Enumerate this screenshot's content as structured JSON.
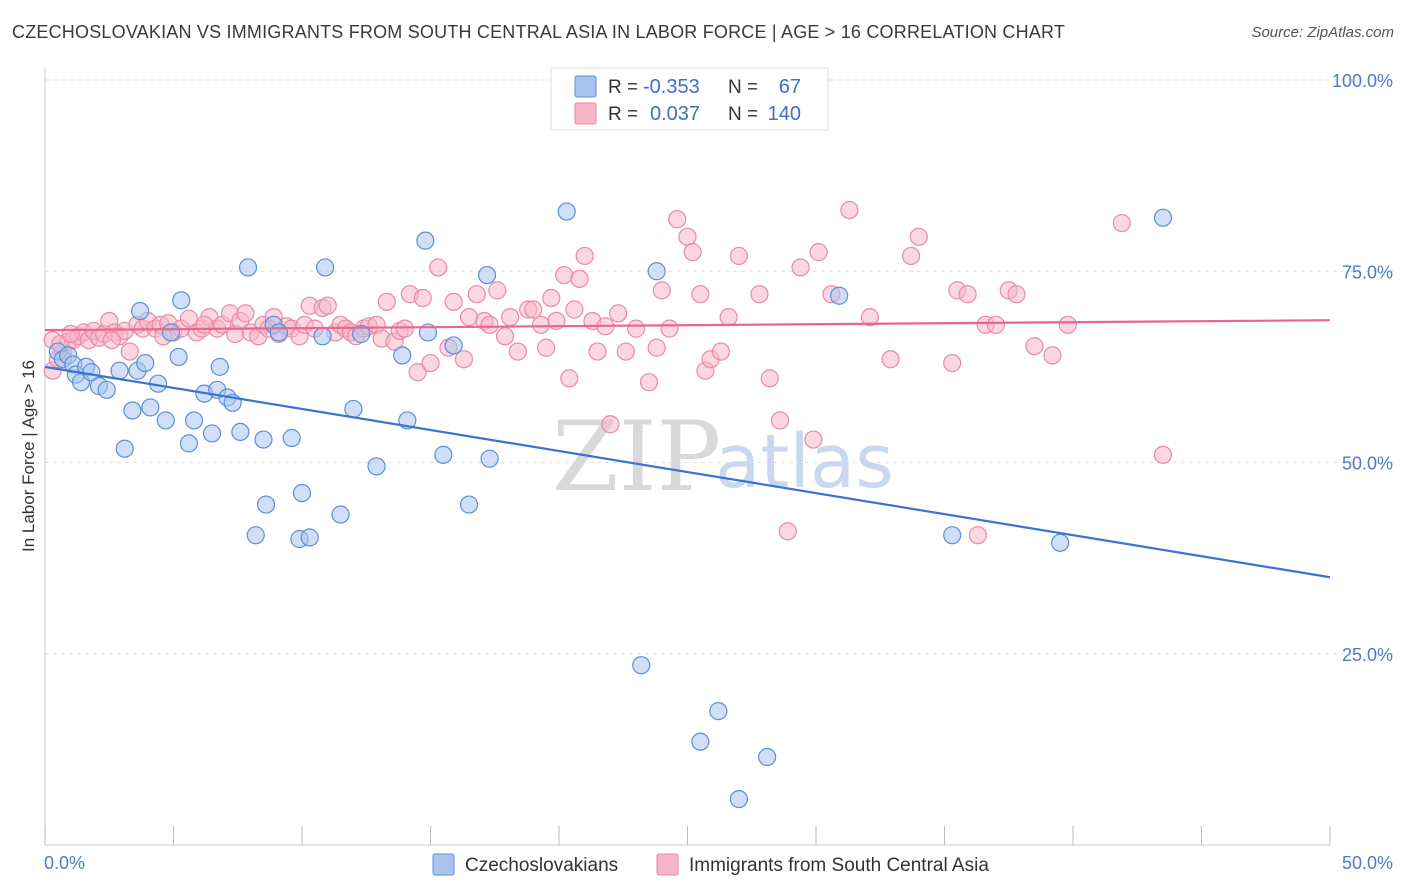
{
  "title": "CZECHOSLOVAKIAN VS IMMIGRANTS FROM SOUTH CENTRAL ASIA IN LABOR FORCE | AGE > 16 CORRELATION CHART",
  "source": "Source: ZipAtlas.com",
  "watermark": {
    "zip": "ZIP",
    "atlas": "atlas"
  },
  "colors": {
    "blue_fill": "#a9c4ee",
    "blue_stroke": "#5b8fd8",
    "blue_line": "#3a74d0",
    "pink_fill": "#f6b6c8",
    "pink_stroke": "#e88aa8",
    "pink_line": "#e8668f",
    "axis_text": "#4a7cc7",
    "grid": "#dddddd"
  },
  "legend_box": {
    "rows": [
      {
        "r_label": "R =",
        "r_value": "-0.353",
        "n_label": "N =",
        "n_value": "67",
        "series": "blue"
      },
      {
        "r_label": "R =",
        "r_value": "0.037",
        "n_label": "N =",
        "n_value": "140",
        "series": "pink"
      }
    ]
  },
  "chart_data": {
    "type": "scatter",
    "title": "CZECHOSLOVAKIAN VS IMMIGRANTS FROM SOUTH CENTRAL ASIA IN LABOR FORCE | AGE > 16 CORRELATION CHART",
    "xlabel": "",
    "ylabel": "In Labor Force | Age > 16",
    "xlim": [
      0,
      50
    ],
    "ylim": [
      0,
      100
    ],
    "x_ticks": [
      "0.0%",
      "50.0%"
    ],
    "y_ticks": [
      {
        "value": 100,
        "label": "100.0%"
      },
      {
        "value": 75,
        "label": "75.0%"
      },
      {
        "value": 50,
        "label": "50.0%"
      },
      {
        "value": 25,
        "label": "25.0%"
      }
    ],
    "grid": true,
    "legend_position": "bottom",
    "series": [
      {
        "name": "Czechoslovakians",
        "color": "#a9c4ee",
        "r": -0.353,
        "n": 67,
        "trend": {
          "x": [
            0,
            50
          ],
          "y": [
            62.5,
            35.0
          ]
        },
        "points": [
          [
            0.5,
            64.5
          ],
          [
            0.7,
            63.5
          ],
          [
            0.9,
            64.0
          ],
          [
            1.1,
            62.8
          ],
          [
            1.2,
            61.5
          ],
          [
            1.4,
            60.5
          ],
          [
            1.6,
            62.5
          ],
          [
            1.8,
            61.8
          ],
          [
            2.1,
            60.0
          ],
          [
            2.4,
            59.5
          ],
          [
            2.9,
            62.0
          ],
          [
            3.1,
            51.8
          ],
          [
            3.4,
            56.8
          ],
          [
            3.6,
            62.0
          ],
          [
            3.7,
            69.8
          ],
          [
            3.9,
            63.0
          ],
          [
            4.1,
            57.2
          ],
          [
            4.4,
            60.3
          ],
          [
            4.7,
            55.5
          ],
          [
            4.9,
            67.0
          ],
          [
            5.2,
            63.8
          ],
          [
            5.3,
            71.2
          ],
          [
            5.6,
            52.5
          ],
          [
            5.8,
            55.5
          ],
          [
            6.2,
            59.0
          ],
          [
            6.5,
            53.8
          ],
          [
            6.7,
            59.5
          ],
          [
            6.8,
            62.5
          ],
          [
            7.1,
            58.5
          ],
          [
            7.3,
            57.8
          ],
          [
            7.6,
            54.0
          ],
          [
            7.9,
            75.5
          ],
          [
            8.2,
            40.5
          ],
          [
            8.5,
            53.0
          ],
          [
            8.6,
            44.5
          ],
          [
            8.9,
            68.0
          ],
          [
            9.1,
            67.0
          ],
          [
            9.6,
            53.2
          ],
          [
            9.9,
            40.0
          ],
          [
            10.0,
            46.0
          ],
          [
            10.3,
            40.2
          ],
          [
            10.9,
            75.5
          ],
          [
            10.8,
            66.5
          ],
          [
            11.5,
            43.2
          ],
          [
            12.0,
            57.0
          ],
          [
            12.3,
            66.8
          ],
          [
            12.9,
            49.5
          ],
          [
            13.9,
            64.0
          ],
          [
            14.1,
            55.5
          ],
          [
            14.8,
            79.0
          ],
          [
            14.9,
            67.0
          ],
          [
            15.5,
            51.0
          ],
          [
            15.9,
            65.3
          ],
          [
            16.5,
            44.5
          ],
          [
            17.2,
            74.5
          ],
          [
            17.3,
            50.5
          ],
          [
            20.3,
            82.8
          ],
          [
            23.2,
            23.5
          ],
          [
            23.8,
            75.0
          ],
          [
            25.5,
            13.5
          ],
          [
            26.2,
            17.5
          ],
          [
            27.0,
            6.0
          ],
          [
            28.1,
            11.5
          ],
          [
            30.9,
            71.8
          ],
          [
            35.3,
            40.5
          ],
          [
            39.5,
            39.5
          ],
          [
            43.5,
            82.0
          ]
        ]
      },
      {
        "name": "Immigrants from South Central Asia",
        "color": "#f6b6c8",
        "r": 0.037,
        "n": 140,
        "trend": {
          "x": [
            0,
            50
          ],
          "y": [
            67.3,
            68.6
          ]
        },
        "points": [
          [
            0.3,
            62.0
          ],
          [
            0.5,
            63.5
          ],
          [
            0.7,
            64.5
          ],
          [
            0.9,
            65.8
          ],
          [
            1.1,
            66.0
          ],
          [
            1.3,
            66.5
          ],
          [
            1.5,
            67.0
          ],
          [
            1.7,
            66.0
          ],
          [
            1.9,
            67.2
          ],
          [
            2.1,
            66.3
          ],
          [
            2.3,
            66.8
          ],
          [
            2.5,
            68.5
          ],
          [
            2.7,
            67.0
          ],
          [
            2.9,
            66.5
          ],
          [
            3.1,
            67.2
          ],
          [
            3.3,
            64.5
          ],
          [
            3.6,
            68.0
          ],
          [
            3.8,
            67.5
          ],
          [
            4.0,
            68.5
          ],
          [
            4.3,
            67.5
          ],
          [
            4.5,
            68.0
          ],
          [
            4.8,
            68.2
          ],
          [
            5.0,
            67.0
          ],
          [
            5.3,
            67.5
          ],
          [
            5.6,
            68.8
          ],
          [
            5.9,
            67.0
          ],
          [
            6.1,
            67.5
          ],
          [
            6.4,
            69.0
          ],
          [
            6.7,
            67.5
          ],
          [
            6.9,
            68.0
          ],
          [
            7.2,
            69.5
          ],
          [
            7.4,
            66.8
          ],
          [
            7.6,
            68.5
          ],
          [
            7.8,
            69.5
          ],
          [
            8.0,
            67.0
          ],
          [
            8.3,
            66.5
          ],
          [
            8.5,
            68.0
          ],
          [
            8.7,
            67.5
          ],
          [
            8.9,
            69.0
          ],
          [
            9.1,
            66.8
          ],
          [
            9.4,
            67.8
          ],
          [
            9.6,
            67.5
          ],
          [
            9.9,
            66.5
          ],
          [
            10.1,
            68.0
          ],
          [
            10.3,
            70.5
          ],
          [
            10.5,
            67.5
          ],
          [
            10.8,
            70.2
          ],
          [
            11.0,
            70.5
          ],
          [
            11.3,
            67.0
          ],
          [
            11.5,
            68.0
          ],
          [
            11.7,
            67.5
          ],
          [
            11.9,
            67.0
          ],
          [
            12.1,
            66.5
          ],
          [
            12.4,
            67.5
          ],
          [
            12.6,
            67.8
          ],
          [
            12.9,
            68.0
          ],
          [
            13.1,
            66.2
          ],
          [
            13.3,
            71.0
          ],
          [
            13.6,
            65.8
          ],
          [
            13.8,
            67.2
          ],
          [
            14.0,
            67.5
          ],
          [
            14.2,
            72.0
          ],
          [
            14.5,
            61.8
          ],
          [
            14.7,
            71.5
          ],
          [
            15.0,
            63.0
          ],
          [
            15.3,
            75.5
          ],
          [
            15.7,
            65.0
          ],
          [
            15.9,
            71.0
          ],
          [
            16.3,
            63.5
          ],
          [
            16.5,
            69.0
          ],
          [
            16.8,
            72.0
          ],
          [
            17.1,
            68.5
          ],
          [
            17.3,
            68.0
          ],
          [
            17.6,
            72.5
          ],
          [
            17.9,
            66.5
          ],
          [
            18.1,
            69.0
          ],
          [
            18.4,
            64.5
          ],
          [
            18.8,
            70.0
          ],
          [
            19.0,
            70.0
          ],
          [
            19.3,
            68.0
          ],
          [
            19.5,
            65.0
          ],
          [
            19.7,
            71.5
          ],
          [
            19.9,
            68.5
          ],
          [
            20.2,
            74.5
          ],
          [
            20.4,
            61.0
          ],
          [
            20.6,
            70.0
          ],
          [
            20.8,
            74.0
          ],
          [
            21.0,
            77.0
          ],
          [
            21.3,
            68.5
          ],
          [
            21.5,
            64.5
          ],
          [
            21.8,
            67.8
          ],
          [
            22.0,
            55.0
          ],
          [
            22.3,
            69.5
          ],
          [
            22.6,
            64.5
          ],
          [
            23.0,
            67.5
          ],
          [
            23.5,
            60.5
          ],
          [
            23.8,
            65.0
          ],
          [
            24.0,
            72.5
          ],
          [
            24.3,
            67.5
          ],
          [
            24.6,
            81.8
          ],
          [
            25.0,
            79.5
          ],
          [
            25.2,
            77.5
          ],
          [
            25.5,
            72.0
          ],
          [
            25.7,
            62.0
          ],
          [
            25.9,
            63.5
          ],
          [
            26.3,
            64.5
          ],
          [
            26.6,
            69.0
          ],
          [
            27.0,
            77.0
          ],
          [
            27.8,
            72.0
          ],
          [
            28.2,
            61.0
          ],
          [
            28.6,
            55.5
          ],
          [
            28.9,
            41.0
          ],
          [
            29.4,
            75.5
          ],
          [
            29.9,
            53.0
          ],
          [
            30.1,
            77.5
          ],
          [
            30.6,
            72.0
          ],
          [
            31.3,
            83.0
          ],
          [
            32.1,
            69.0
          ],
          [
            32.9,
            63.5
          ],
          [
            33.7,
            77.0
          ],
          [
            34.0,
            79.5
          ],
          [
            35.3,
            63.0
          ],
          [
            35.5,
            72.5
          ],
          [
            35.9,
            72.0
          ],
          [
            36.3,
            40.5
          ],
          [
            36.6,
            68.0
          ],
          [
            37.0,
            68.0
          ],
          [
            37.5,
            72.5
          ],
          [
            37.8,
            72.0
          ],
          [
            38.5,
            65.2
          ],
          [
            39.2,
            64.0
          ],
          [
            39.8,
            68.0
          ],
          [
            41.9,
            81.3
          ],
          [
            43.5,
            51.0
          ],
          [
            0.3,
            66.0
          ],
          [
            0.6,
            65.5
          ],
          [
            1.0,
            66.8
          ],
          [
            2.6,
            66.0
          ],
          [
            4.6,
            66.5
          ],
          [
            6.2,
            68.0
          ]
        ]
      }
    ]
  }
}
